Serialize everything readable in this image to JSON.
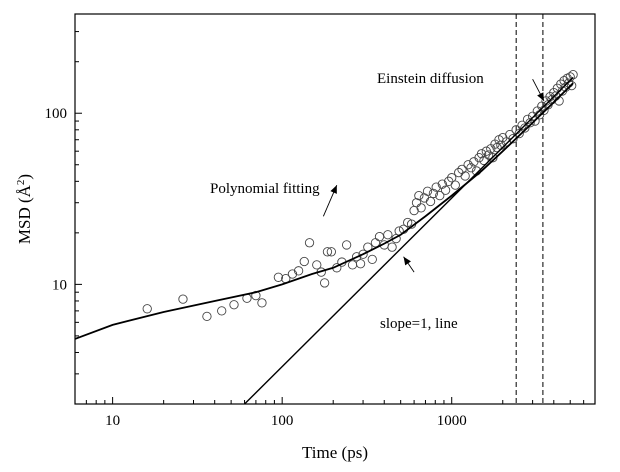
{
  "chart_data": {
    "type": "scatter",
    "x_scale": "log",
    "y_scale": "log",
    "xlabel": "Time (ps)",
    "ylabel": "MSD (Å",
    "ylabel_sup": "2",
    "ylabel_end": ")",
    "xlim": [
      6,
      7000
    ],
    "ylim": [
      2,
      380
    ],
    "x_ticks": [
      {
        "value": 10,
        "label": "10"
      },
      {
        "value": 100,
        "label": "100"
      },
      {
        "value": 1000,
        "label": "1000"
      }
    ],
    "y_ticks": [
      {
        "value": 10,
        "label": "10"
      },
      {
        "value": 100,
        "label": "100"
      }
    ],
    "vertical_lines": [
      2400,
      3450
    ],
    "series": [
      {
        "kind": "scatter",
        "points": [
          [
            16,
            7.2
          ],
          [
            26,
            8.2
          ],
          [
            36,
            6.5
          ],
          [
            44,
            7.0
          ],
          [
            52,
            7.6
          ],
          [
            62,
            8.3
          ],
          [
            70,
            8.6
          ],
          [
            76,
            7.8
          ],
          [
            95,
            11.0
          ],
          [
            105,
            10.8
          ],
          [
            115,
            11.5
          ],
          [
            125,
            12.0
          ],
          [
            135,
            13.6
          ],
          [
            145,
            17.5
          ],
          [
            160,
            13.0
          ],
          [
            170,
            11.8
          ],
          [
            178,
            10.2
          ],
          [
            185,
            15.5
          ],
          [
            195,
            15.5
          ],
          [
            210,
            12.5
          ],
          [
            225,
            13.5
          ],
          [
            240,
            17.0
          ],
          [
            260,
            13.0
          ],
          [
            275,
            14.5
          ],
          [
            290,
            13.2
          ],
          [
            300,
            15.0
          ],
          [
            320,
            16.5
          ],
          [
            340,
            14.0
          ],
          [
            355,
            17.5
          ],
          [
            375,
            19.0
          ],
          [
            400,
            17.0
          ],
          [
            420,
            19.5
          ],
          [
            445,
            16.5
          ],
          [
            470,
            18.5
          ],
          [
            490,
            20.5
          ],
          [
            520,
            21.0
          ],
          [
            550,
            23.0
          ],
          [
            580,
            22.5
          ],
          [
            600,
            27.0
          ],
          [
            620,
            30.0
          ],
          [
            640,
            33.0
          ],
          [
            660,
            28.0
          ],
          [
            690,
            32.0
          ],
          [
            720,
            35.0
          ],
          [
            750,
            30.5
          ],
          [
            780,
            34.0
          ],
          [
            810,
            37.0
          ],
          [
            850,
            33.0
          ],
          [
            880,
            38.5
          ],
          [
            920,
            35.5
          ],
          [
            960,
            40.0
          ],
          [
            1000,
            42.0
          ],
          [
            1050,
            38.0
          ],
          [
            1100,
            45.0
          ],
          [
            1150,
            47.0
          ],
          [
            1200,
            43.0
          ],
          [
            1250,
            50.0
          ],
          [
            1300,
            48.0
          ],
          [
            1350,
            52.0
          ],
          [
            1400,
            46.0
          ],
          [
            1450,
            55.0
          ],
          [
            1500,
            58.0
          ],
          [
            1550,
            53.0
          ],
          [
            1600,
            60.0
          ],
          [
            1650,
            57.0
          ],
          [
            1700,
            62.0
          ],
          [
            1750,
            55.0
          ],
          [
            1800,
            66.0
          ],
          [
            1850,
            63.0
          ],
          [
            1900,
            70.0
          ],
          [
            1950,
            65.0
          ],
          [
            2000,
            72.0
          ],
          [
            2100,
            68.0
          ],
          [
            2200,
            75.0
          ],
          [
            2300,
            71.0
          ],
          [
            2400,
            80.0
          ],
          [
            2500,
            76.0
          ],
          [
            2600,
            85.0
          ],
          [
            2700,
            82.0
          ],
          [
            2800,
            92.0
          ],
          [
            2900,
            88.0
          ],
          [
            3000,
            96.0
          ],
          [
            3100,
            90.0
          ],
          [
            3200,
            103.0
          ],
          [
            3300,
            98.0
          ],
          [
            3400,
            110.0
          ],
          [
            3500,
            104.0
          ],
          [
            3600,
            118.0
          ],
          [
            3700,
            112.0
          ],
          [
            3800,
            125.0
          ],
          [
            3900,
            120.0
          ],
          [
            4000,
            132.0
          ],
          [
            4100,
            126.0
          ],
          [
            4200,
            140.0
          ],
          [
            4300,
            118.0
          ],
          [
            4400,
            148.0
          ],
          [
            4500,
            135.0
          ],
          [
            4600,
            155.0
          ],
          [
            4700,
            142.0
          ],
          [
            4800,
            160.0
          ],
          [
            4900,
            150.0
          ],
          [
            5000,
            163.0
          ],
          [
            5100,
            145.0
          ],
          [
            5200,
            168.0
          ]
        ]
      },
      {
        "kind": "line",
        "points": [
          [
            6,
            4.8
          ],
          [
            10,
            5.8
          ],
          [
            20,
            6.9
          ],
          [
            40,
            8.0
          ],
          [
            70,
            9.0
          ],
          [
            100,
            10.0
          ],
          [
            150,
            11.5
          ],
          [
            200,
            12.5
          ],
          [
            300,
            15.0
          ],
          [
            400,
            17.3
          ],
          [
            500,
            19.5
          ],
          [
            700,
            25.0
          ],
          [
            1000,
            33.0
          ],
          [
            1500,
            46.0
          ],
          [
            2000,
            60.0
          ],
          [
            3000,
            88.0
          ],
          [
            4000,
            116.0
          ],
          [
            5200,
            150.0
          ]
        ]
      },
      {
        "kind": "line",
        "points": [
          [
            60,
            2.0
          ],
          [
            5200,
            162.0
          ]
        ]
      }
    ],
    "annotations": [
      {
        "text": "Einstein diffusion",
        "arrow_from": [
          3000,
          158
        ],
        "arrow_to": [
          3500,
          118
        ]
      },
      {
        "text": "Polynomial fitting",
        "arrow_from": [
          175,
          25
        ],
        "arrow_to": [
          210,
          38
        ]
      },
      {
        "text": "slope=1, line",
        "arrow_from": [
          600,
          11.8
        ],
        "arrow_to": [
          520,
          14.5
        ]
      }
    ]
  }
}
